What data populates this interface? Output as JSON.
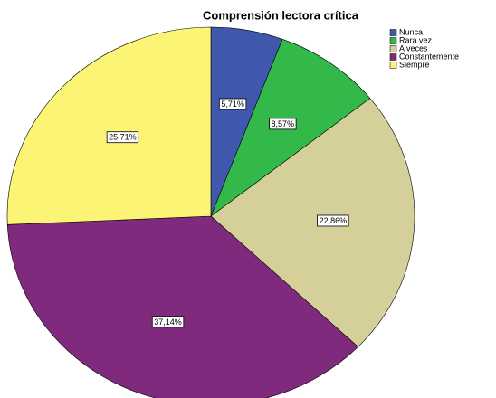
{
  "chart_data": {
    "type": "pie",
    "title": "Comprensión lectora crítica",
    "categories": [
      "Nunca",
      "Rara vez",
      "A veces",
      "Constantemente",
      "Siempre"
    ],
    "values": [
      5.71,
      8.57,
      22.86,
      37.14,
      25.71
    ],
    "value_labels": [
      "5,71%",
      "8,57%",
      "22,86%",
      "37,14%",
      "25,71%"
    ],
    "colors": [
      "#3f57ac",
      "#33b84a",
      "#d5d09a",
      "#7f2a7c",
      "#fbf475"
    ],
    "legend": "top-right"
  }
}
